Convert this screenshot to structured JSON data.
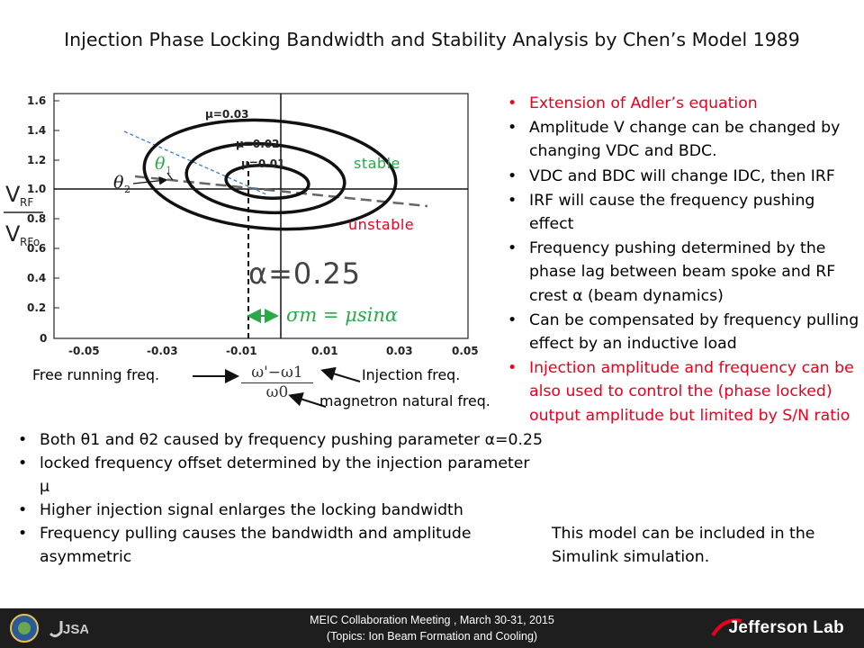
{
  "slide": {
    "title": "Injection Phase Locking Bandwidth and Stability Analysis by Chen’s Model 1989"
  },
  "plot": {
    "y_label_top": "V",
    "y_label_top_sub": "RF",
    "y_label_bottom": "V",
    "y_label_bottom_sub": "RFo",
    "y_ticks": [
      "1.6",
      "1.4",
      "1.2",
      "1.0",
      "0.8",
      "0.6",
      "0.4",
      "0.2",
      "0"
    ],
    "x_ticks": [
      "-0.05",
      "-0.03",
      "-0.01",
      "0.01",
      "0.03",
      "0.05"
    ],
    "mu_labels": [
      "μ=0.03",
      "μ=0.02",
      "μ=0.01"
    ],
    "theta1": "θ",
    "theta1_sub": "1",
    "theta2": "θ",
    "theta2_sub": "2",
    "stable": "stable",
    "unstable": "unstable",
    "alpha_label": "α=0.25",
    "sigma_formula": "σm = μsinα",
    "x_axis_expr_num": "ω'−ω1",
    "x_axis_expr_den": "ω0",
    "free_running": "Free running freq.",
    "injection_freq": "Injection freq.",
    "magnetron_freq": "magnetron natural freq."
  },
  "right_bullets": [
    {
      "text": "Extension of Adler’s equation",
      "color": "#e8001c"
    },
    {
      "text": "Amplitude V change can be changed by changing VDC and BDC."
    },
    {
      "text": "VDC and BDC will change IDC, then IRF"
    },
    {
      "text": "IRF will cause the frequency pushing effect"
    },
    {
      "text": "Frequency pushing determined by the phase lag between beam spoke and RF crest α (beam dynamics)"
    },
    {
      "text": "Can be compensated by frequency pulling effect by an inductive load"
    },
    {
      "text": "Injection amplitude and frequency can be also used to control the (phase locked) output amplitude but limited by S/N ratio",
      "color": "#e8001c"
    }
  ],
  "left_bullets": [
    {
      "text": "Both θ1 and θ2 caused by frequency pushing parameter α=0.25"
    },
    {
      "text": "locked frequency offset determined by the injection parameter μ"
    },
    {
      "text": "Higher injection signal enlarges the locking bandwidth"
    },
    {
      "text": "Frequency pulling causes the bandwidth and amplitude asymmetric"
    }
  ],
  "simulink_note": "This model can be included in the Simulink simulation.",
  "footer": {
    "line1": "MEIC Collaboration Meeting , March 30-31, 2015",
    "line2": "(Topics: Ion Beam Formation and Cooling)",
    "lab_name": "Jefferson Lab",
    "logo_left": "JSA"
  },
  "colors": {
    "red_text": "#e8001c",
    "green_text": "#2aa84a",
    "blue_dashed": "#3a7bd5",
    "footer_bg": "#1e1e1e"
  }
}
